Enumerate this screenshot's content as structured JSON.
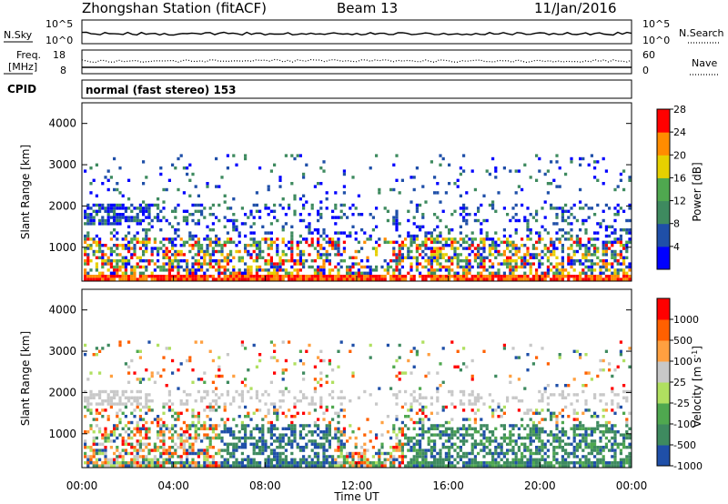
{
  "header": {
    "title": "Zhongshan Station (fitACF)",
    "beam": "Beam 13",
    "date": "11/Jan/2016"
  },
  "noise_panel": {
    "left_label": "N.Sky",
    "left_ticks": [
      "10^5",
      "10^0"
    ],
    "right_label": "N.Search",
    "right_ticks": [
      "10^5",
      "10^0"
    ]
  },
  "freq_panel": {
    "left_label_1": "Freq.",
    "left_label_2": "[MHz]",
    "left_ticks": [
      "18",
      "8"
    ],
    "right_label": "Nave",
    "right_ticks": [
      "60",
      "0"
    ]
  },
  "cpid_panel": {
    "label": "CPID",
    "text": "normal (fast stereo) 153"
  },
  "axes": {
    "ylabel": "Slant Range [km]",
    "y_ticks": [
      "1000",
      "2000",
      "3000",
      "4000"
    ],
    "x_ticks": [
      "00:00",
      "04:00",
      "08:00",
      "12:00",
      "16:00",
      "20:00",
      "00:00"
    ],
    "xlabel": "Time UT"
  },
  "chart_data": [
    {
      "type": "heatmap",
      "quantity": "Power",
      "colorbar_label": "Power [dB]",
      "colorbar_ticks": [
        "4",
        "8",
        "12",
        "16",
        "20",
        "24",
        "28"
      ],
      "colors": [
        "#0000ff",
        "#1f4fa8",
        "#3e8a5f",
        "#4fa84f",
        "#e6d000",
        "#ff8c00",
        "#ff0000"
      ],
      "x_range_hours": [
        0,
        24
      ],
      "y_range_km": [
        180,
        4500
      ]
    },
    {
      "type": "heatmap",
      "quantity": "Velocity",
      "colorbar_label": "Velocity [m s",
      "colorbar_ticks": [
        "1000",
        "500",
        "100",
        "25",
        "-25",
        "-100",
        "-500",
        "-1000"
      ],
      "colors": [
        "#1f4fa8",
        "#3e8a5f",
        "#4fa84f",
        "#b0e060",
        "#c8c8c8",
        "#ffa040",
        "#ff6000",
        "#ff0000"
      ],
      "x_range_hours": [
        0,
        24
      ],
      "y_range_km": [
        180,
        4500
      ]
    }
  ]
}
